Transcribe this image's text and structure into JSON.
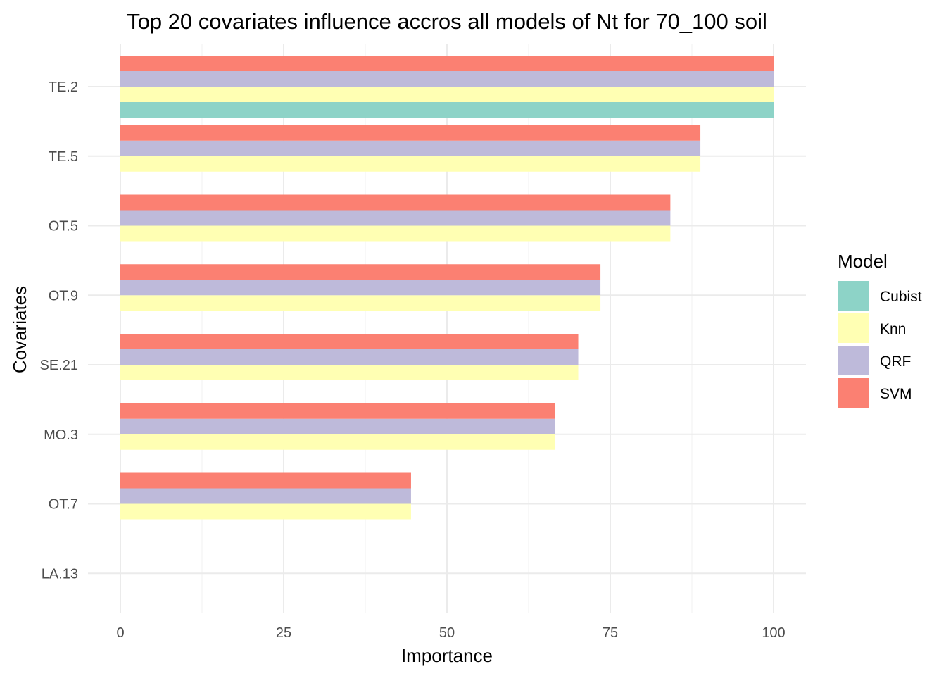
{
  "chart_data": {
    "type": "bar",
    "orientation": "horizontal",
    "title": "Top 20 covariates influence accros all models of Nt for 70_100 soil",
    "xlabel": "Importance",
    "ylabel": "Covariates",
    "xlim": [
      0,
      100
    ],
    "xticks": [
      0,
      25,
      50,
      75,
      100
    ],
    "grid": true,
    "legend_title": "Model",
    "legend_position": "right",
    "categories": [
      "TE.2",
      "TE.5",
      "OT.5",
      "OT.9",
      "SE.21",
      "MO.3",
      "OT.7",
      "LA.13"
    ],
    "series": [
      {
        "name": "Cubist",
        "color": "#8DD3C7",
        "values": [
          100,
          null,
          null,
          null,
          null,
          null,
          null,
          null
        ]
      },
      {
        "name": "Knn",
        "color": "#FFFFB3",
        "values": [
          100,
          88.8,
          84.2,
          73.5,
          70.1,
          66.5,
          44.5,
          null
        ]
      },
      {
        "name": "QRF",
        "color": "#BEBADA",
        "values": [
          100,
          88.8,
          84.2,
          73.5,
          70.1,
          66.5,
          44.5,
          null
        ]
      },
      {
        "name": "SVM",
        "color": "#FB8072",
        "values": [
          100,
          88.8,
          84.2,
          73.5,
          70.1,
          66.5,
          44.5,
          null
        ]
      }
    ]
  }
}
